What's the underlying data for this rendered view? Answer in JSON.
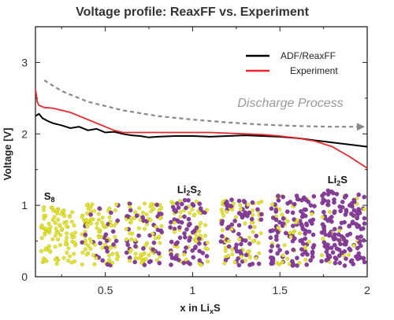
{
  "chart_data": {
    "type": "line",
    "title": "Voltage profile: ReaxFF vs. Experiment",
    "xlabel": {
      "main": "x in Li",
      "sub": "x",
      "tail": "S"
    },
    "ylabel": "Voltage [V]",
    "xlim": [
      0.1,
      2.0
    ],
    "ylim": [
      0,
      3.5
    ],
    "xticks": [
      0.5,
      1,
      1.5,
      2
    ],
    "xtick_labels": [
      "0.5",
      "1",
      "1.5",
      "2"
    ],
    "yticks": [
      0,
      1,
      2,
      3
    ],
    "ytick_labels": [
      "0",
      "1",
      "2",
      "3"
    ],
    "legend": {
      "position": "top-right"
    },
    "series": [
      {
        "name": "ADF/ReaxFF",
        "color": "#000000",
        "x": [
          0.1,
          0.12,
          0.14,
          0.17,
          0.2,
          0.25,
          0.3,
          0.35,
          0.4,
          0.45,
          0.5,
          0.55,
          0.6,
          0.65,
          0.7,
          0.75,
          0.8,
          0.9,
          1.0,
          1.1,
          1.2,
          1.3,
          1.4,
          1.5,
          1.6,
          1.7,
          1.8,
          1.9,
          2.0
        ],
        "y": [
          2.25,
          2.28,
          2.22,
          2.18,
          2.15,
          2.12,
          2.08,
          2.1,
          2.05,
          2.07,
          2.02,
          2.03,
          2.0,
          1.98,
          1.97,
          1.95,
          1.96,
          1.97,
          1.97,
          1.96,
          1.97,
          1.98,
          1.97,
          1.96,
          1.94,
          1.91,
          1.88,
          1.85,
          1.82
        ]
      },
      {
        "name": "Experiment",
        "color": "#e8262b",
        "x": [
          0.1,
          0.105,
          0.11,
          0.12,
          0.15,
          0.2,
          0.25,
          0.3,
          0.35,
          0.4,
          0.45,
          0.5,
          0.55,
          0.6,
          0.7,
          0.8,
          0.9,
          1.0,
          1.1,
          1.2,
          1.3,
          1.4,
          1.5,
          1.6,
          1.7,
          1.75,
          1.8,
          1.85,
          1.9,
          1.95,
          2.0
        ],
        "y": [
          2.62,
          2.55,
          2.45,
          2.4,
          2.37,
          2.36,
          2.33,
          2.3,
          2.25,
          2.2,
          2.15,
          2.1,
          2.05,
          2.02,
          2.02,
          2.02,
          2.02,
          2.02,
          2.02,
          2.01,
          2.0,
          1.99,
          1.97,
          1.94,
          1.9,
          1.86,
          1.82,
          1.75,
          1.68,
          1.6,
          1.52
        ]
      },
      {
        "name": "Discharge Process",
        "color": "#888888",
        "style": "dashed-arrow",
        "x": [
          0.15,
          0.25,
          0.4,
          0.6,
          0.8,
          1.0,
          1.2,
          1.4,
          1.6,
          1.8,
          1.95
        ],
        "y": [
          2.75,
          2.6,
          2.45,
          2.33,
          2.25,
          2.2,
          2.16,
          2.13,
          2.11,
          2.1,
          2.1
        ]
      }
    ],
    "annotations": [
      {
        "text": "Discharge Process",
        "x": 1.56,
        "y": 2.38
      }
    ],
    "structures": [
      {
        "label": "S",
        "sub": "8",
        "x": 0.18,
        "y": 1.08
      },
      {
        "label": "Li",
        "sub": "2",
        "mid": "S",
        "sub2": "2",
        "x": 0.98,
        "y": 1.17
      },
      {
        "label": "Li",
        "sub": "2",
        "mid": "S",
        "sub2": "",
        "x": 1.83,
        "y": 1.31
      }
    ]
  }
}
